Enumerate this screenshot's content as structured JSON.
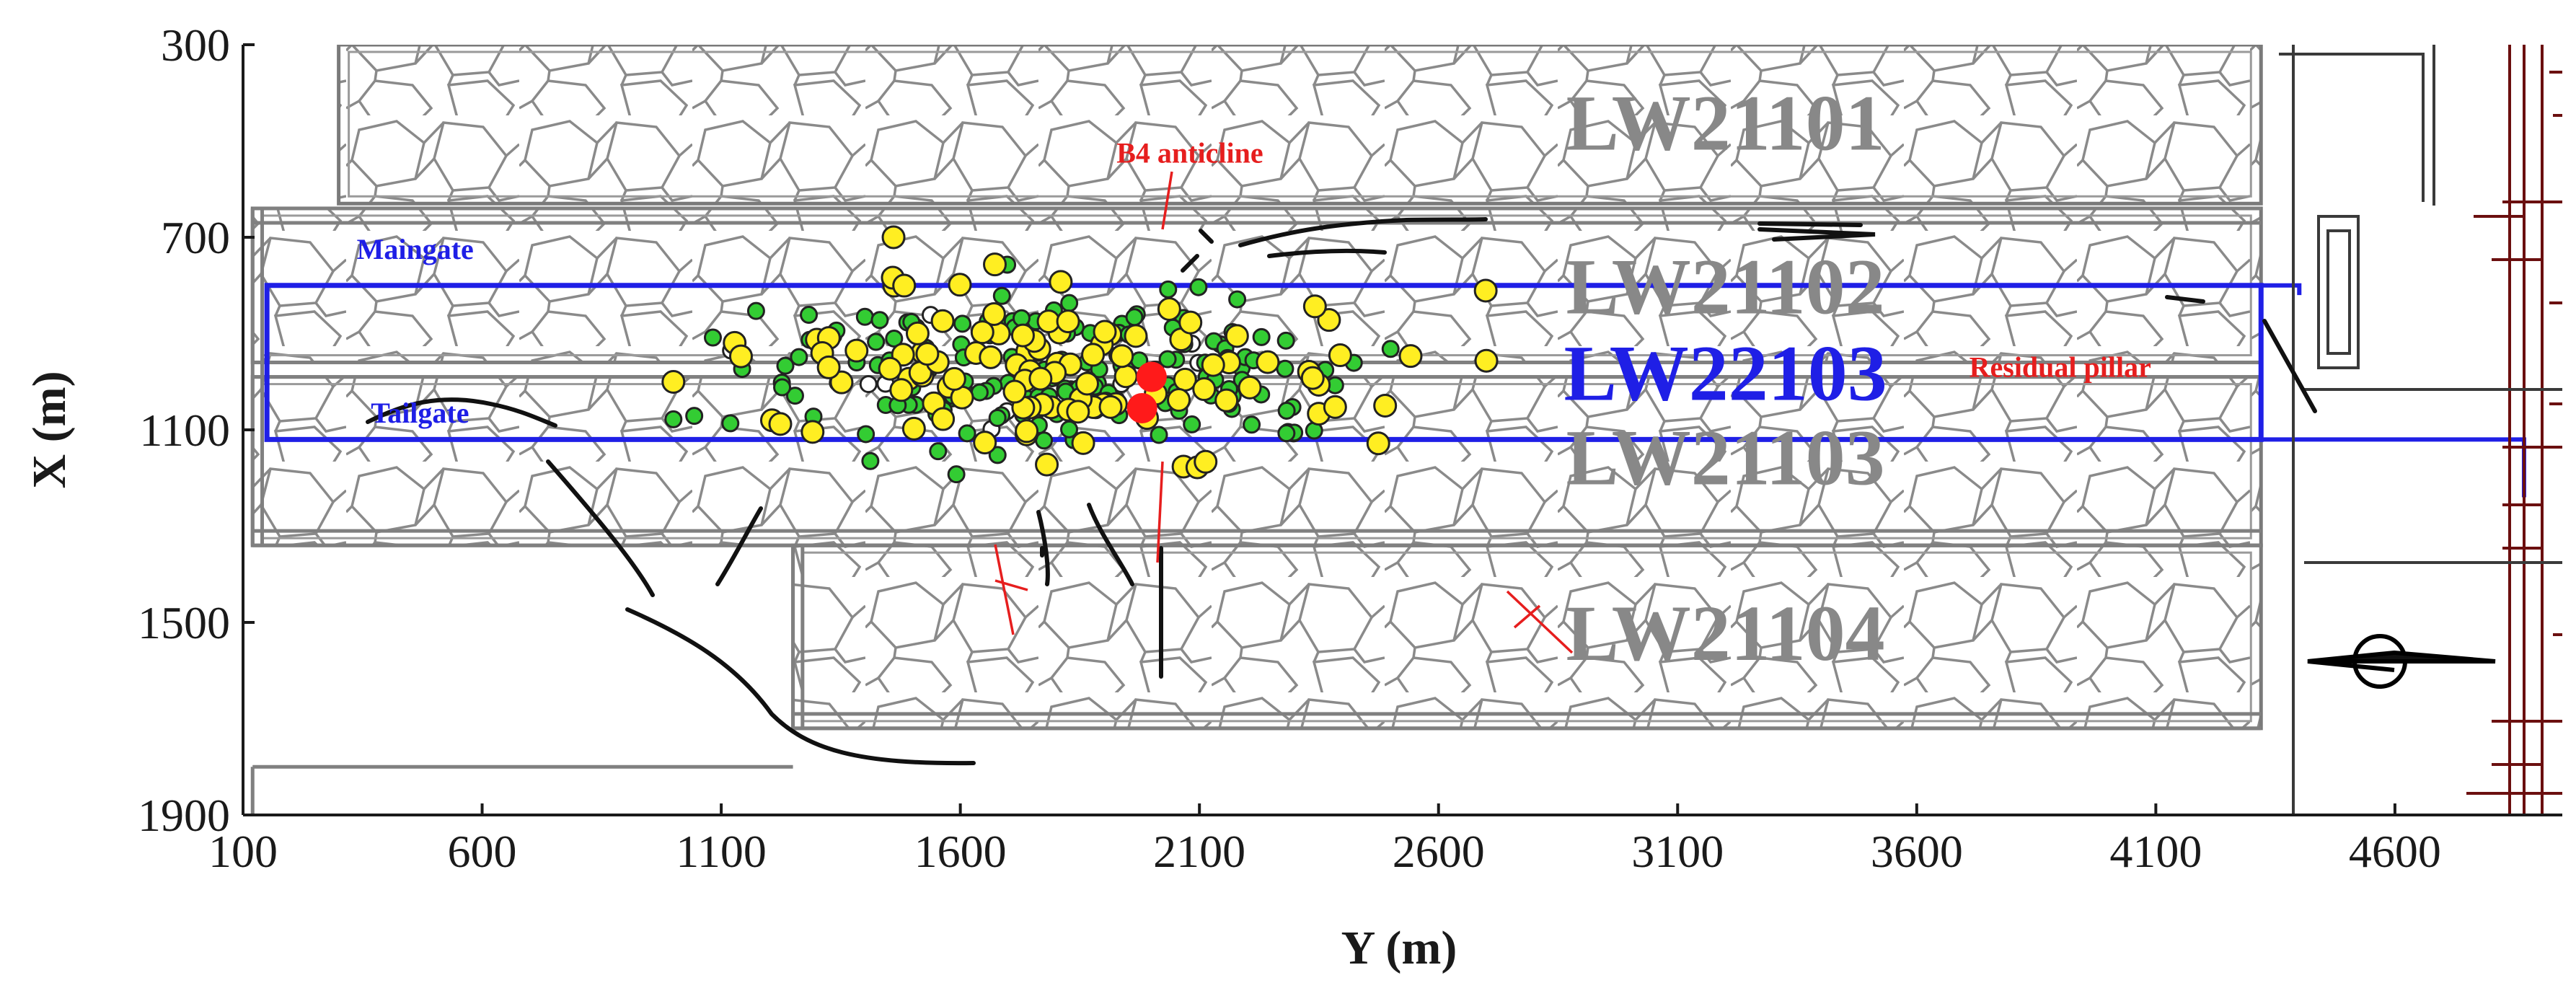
{
  "chart_data": {
    "type": "scatter",
    "title": "",
    "xlabel": "Y (m)",
    "ylabel": "X (m)",
    "xlim": [
      100,
      4950
    ],
    "ylim": [
      1900,
      300
    ],
    "x_ticks": [
      "100",
      "600",
      "1100",
      "1600",
      "2100",
      "2600",
      "3100",
      "3600",
      "4100",
      "4600"
    ],
    "y_ticks": [
      "300",
      "700",
      "1100",
      "1500",
      "1900"
    ],
    "panels": [
      {
        "label": "LW21101",
        "x1": 300,
        "x2": 4320,
        "y1": 300,
        "y2": 630,
        "label_x": 3200,
        "label_y": 480,
        "label_color": "#888888"
      },
      {
        "label": "LW21102",
        "x1": 120,
        "x2": 4320,
        "y1": 640,
        "y2": 960,
        "label_x": 3200,
        "label_y": 820,
        "label_color": "#888888"
      },
      {
        "label": "LW21103",
        "x1": 120,
        "x2": 4320,
        "y1": 990,
        "y2": 1340,
        "label_x": 3200,
        "label_y": 1175,
        "label_color": "#888888"
      },
      {
        "label": "LW21104",
        "x1": 1250,
        "x2": 4320,
        "y1": 1340,
        "y2": 1720,
        "label_x": 3200,
        "label_y": 1540,
        "label_color": "#888888"
      }
    ],
    "active_panel": {
      "label": "LW22103",
      "x1": 150,
      "x2": 4320,
      "y1": 800,
      "y2": 1120,
      "label_x": 3200,
      "label_y": 1000,
      "color": "#1f1fe6"
    },
    "annotations": [
      {
        "text": "Maingate",
        "x": 460,
        "y": 745,
        "color": "#1f1fe6"
      },
      {
        "text": "Tailgate",
        "x": 470,
        "y": 1085,
        "color": "#1f1fe6"
      },
      {
        "text": "B4 anticline",
        "x": 2080,
        "y": 545,
        "color": "#e61e1e"
      },
      {
        "text": "Residual pillar",
        "x": 3900,
        "y": 990,
        "color": "#e61e1e"
      }
    ],
    "events": {
      "green": {
        "color": "#33cc33",
        "count": 170
      },
      "yellow": {
        "color": "#ffee22",
        "count": 110
      },
      "hollow": {
        "color": "#ffffff",
        "count": 14
      },
      "mainshock": [
        {
          "x": 2000,
          "y": 990
        },
        {
          "x": 1980,
          "y": 1055
        }
      ],
      "mainshock_color": "#ff1a1a",
      "center_x": 1800,
      "center_y": 980,
      "spread_x": 330,
      "spread_y": 85,
      "x_range": [
        1000,
        2700
      ],
      "y_range": [
        700,
        1340
      ]
    },
    "grid": false,
    "legend": "none"
  }
}
